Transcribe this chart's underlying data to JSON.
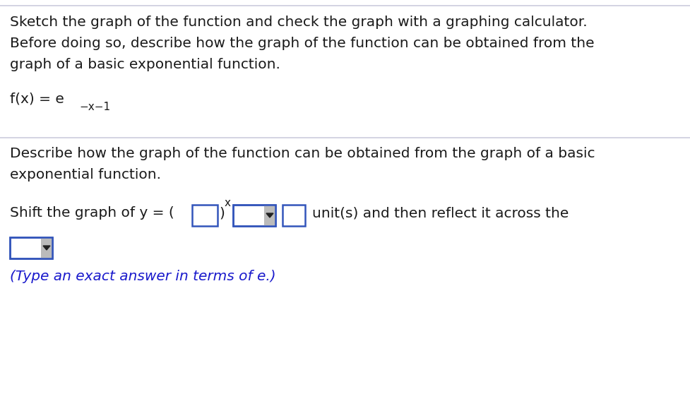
{
  "background_color": "#ffffff",
  "paragraph1_lines": [
    "Sketch the graph of the function and check the graph with a graphing calculator.",
    "Before doing so, describe how the graph of the function can be obtained from the",
    "graph of a basic exponential function."
  ],
  "function_text_prefix": "f(x) = e",
  "function_exponent": "−x−1",
  "paragraph2_lines": [
    "Describe how the graph of the function can be obtained from the graph of a basic",
    "exponential function."
  ],
  "shift_text_prefix": "Shift the graph of y = (",
  "shift_text_suffix": "unit(s) and then reflect it across the",
  "hint_text": "(Type an exact answer in terms of e.)",
  "hint_color": "#1a1acc",
  "text_color": "#1a1a1a",
  "box_border_color": "#3355bb",
  "font_size_main": 14.5,
  "font_size_super": 11,
  "divider_color": "#ccccdd",
  "top_border_color": "#ccccdd",
  "scrollbar_color": "#bbbbbb",
  "arrow_color": "#222222"
}
